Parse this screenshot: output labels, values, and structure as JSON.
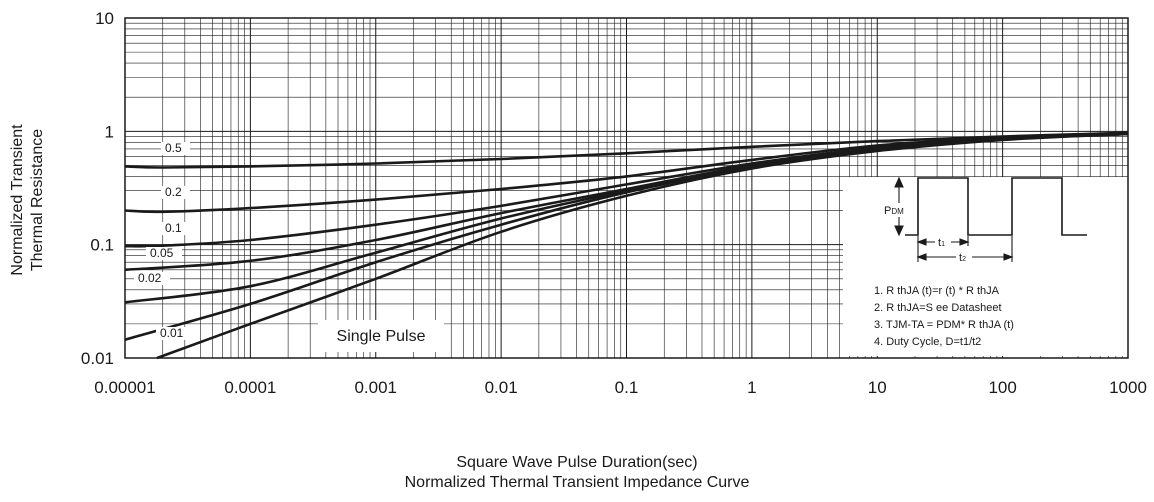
{
  "chart_data": {
    "type": "line",
    "xlabel": "Square Wave Pulse Duration(sec)",
    "ylabel_line1": "Normalized Transient",
    "ylabel_line2": "Thermal Resistance",
    "caption": "Normalized Thermal Transient Impedance Curve",
    "x_scale": "log",
    "y_scale": "log",
    "xlim": [
      1e-05,
      1000
    ],
    "ylim": [
      0.01,
      10
    ],
    "grid": true,
    "x_ticks": [
      {
        "value": 1e-05,
        "label": "0.00001"
      },
      {
        "value": 0.0001,
        "label": "0.0001"
      },
      {
        "value": 0.001,
        "label": "0.001"
      },
      {
        "value": 0.01,
        "label": "0.01"
      },
      {
        "value": 0.1,
        "label": "0.1"
      },
      {
        "value": 1,
        "label": "1"
      },
      {
        "value": 10,
        "label": "10"
      },
      {
        "value": 100,
        "label": "100"
      },
      {
        "value": 1000,
        "label": "1000"
      }
    ],
    "y_ticks": [
      {
        "value": 0.01,
        "label": "0.01"
      },
      {
        "value": 0.1,
        "label": "0.1"
      },
      {
        "value": 1,
        "label": "1"
      },
      {
        "value": 10,
        "label": "10"
      }
    ],
    "series": [
      {
        "name": "0.5",
        "x": [
          1e-05,
          2e-05,
          0.0001,
          0.001,
          0.01,
          0.1,
          1,
          10,
          100,
          1000
        ],
        "y": [
          0.49,
          0.48,
          0.49,
          0.52,
          0.57,
          0.64,
          0.73,
          0.82,
          0.9,
          0.97
        ]
      },
      {
        "name": "0.2",
        "x": [
          1e-05,
          2e-05,
          0.0001,
          0.001,
          0.01,
          0.1,
          1,
          10,
          100,
          1000
        ],
        "y": [
          0.2,
          0.195,
          0.21,
          0.25,
          0.31,
          0.4,
          0.56,
          0.75,
          0.88,
          0.96
        ]
      },
      {
        "name": "0.1",
        "x": [
          1e-05,
          2e-05,
          0.0001,
          0.001,
          0.01,
          0.1,
          1,
          10,
          100,
          1000
        ],
        "y": [
          0.097,
          0.098,
          0.11,
          0.15,
          0.22,
          0.34,
          0.52,
          0.72,
          0.87,
          0.96
        ]
      },
      {
        "name": "0.05",
        "x": [
          1e-05,
          0.0001,
          0.001,
          0.01,
          0.1,
          1,
          10,
          100,
          1000
        ],
        "y": [
          0.06,
          0.072,
          0.11,
          0.19,
          0.31,
          0.5,
          0.7,
          0.86,
          0.95
        ]
      },
      {
        "name": "0.02",
        "x": [
          1e-05,
          0.0001,
          0.001,
          0.01,
          0.1,
          1,
          10,
          100,
          1000
        ],
        "y": [
          0.031,
          0.043,
          0.085,
          0.17,
          0.3,
          0.49,
          0.69,
          0.85,
          0.95
        ]
      },
      {
        "name": "0.01",
        "x": [
          1e-05,
          0.0001,
          0.001,
          0.01,
          0.1,
          1,
          10,
          100,
          1000
        ],
        "y": [
          0.0145,
          0.03,
          0.07,
          0.15,
          0.29,
          0.48,
          0.68,
          0.85,
          0.95
        ]
      },
      {
        "name": "Single Pulse",
        "x": [
          1.8e-05,
          0.0001,
          0.001,
          0.01,
          0.1,
          1,
          10,
          100,
          1000
        ],
        "y": [
          0.01,
          0.02,
          0.05,
          0.13,
          0.27,
          0.47,
          0.67,
          0.84,
          0.95
        ]
      }
    ],
    "inset": {
      "pdm_label": "P",
      "pdm_sub": "DM",
      "t1_label": "t",
      "t1_sub": "1",
      "t2_label": "t",
      "t2_sub": "2",
      "notes": [
        "1. R thJA (t)=r (t) * R thJA",
        "2. R thJA=S ee Datasheet",
        "3. TJM-TA = PDM* R thJA (t)",
        "4. Duty Cycle, D=t1/t2"
      ]
    },
    "single_pulse_label": "Single Pulse"
  }
}
